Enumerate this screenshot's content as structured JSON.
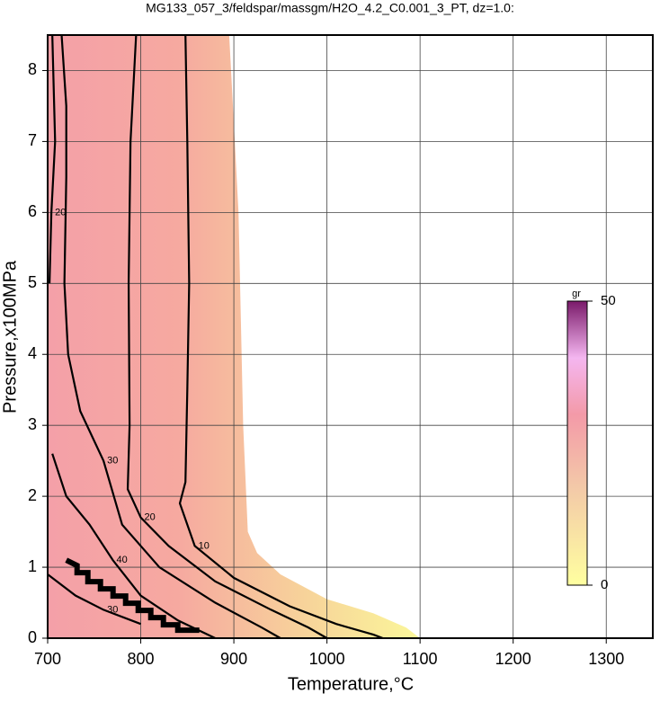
{
  "chart_data": {
    "type": "contour",
    "title": "MG133_057_3/feldspar/massgm/H2O_4.2_C0.001_3_PT, dz=1.0:",
    "x_label": "Temperature,°C",
    "y_label": "Pressure,x100MPa",
    "xlim": [
      700,
      1350
    ],
    "ylim": [
      0,
      8.5
    ],
    "xticks": [
      700,
      800,
      900,
      1000,
      1100,
      1200,
      1300
    ],
    "yticks": [
      0,
      1,
      2,
      3,
      4,
      5,
      6,
      7,
      8
    ],
    "grid": true,
    "field": {
      "x": [
        700,
        895,
        905,
        910,
        915,
        925,
        950,
        1000,
        1050,
        1085,
        1100,
        700
      ],
      "y": [
        8.5,
        8.5,
        6,
        3,
        1.5,
        1.2,
        0.9,
        0.55,
        0.35,
        0.15,
        0,
        0
      ]
    },
    "contours": [
      {
        "level": 10,
        "x": [
          848,
          850,
          852,
          850,
          848,
          842,
          858,
          900,
          960,
          1010,
          1050,
          1060
        ],
        "y": [
          8.5,
          7,
          5,
          3.5,
          2.2,
          1.9,
          1.3,
          0.85,
          0.45,
          0.2,
          0.05,
          0
        ]
      },
      {
        "level": 20,
        "x": [
          795,
          789,
          787,
          788,
          786,
          800,
          830,
          880,
          940,
          980,
          1000
        ],
        "y": [
          8.5,
          7,
          5,
          3,
          2.1,
          1.7,
          1.3,
          0.8,
          0.4,
          0.15,
          0
        ]
      },
      {
        "level": 30,
        "x": [
          715,
          720,
          720,
          718,
          722,
          735,
          760,
          780,
          820,
          880,
          930,
          950
        ],
        "y": [
          8.5,
          7.5,
          6.5,
          5,
          4,
          3.2,
          2.5,
          1.6,
          1.0,
          0.5,
          0.15,
          0
        ]
      },
      {
        "level": 40,
        "x": [
          705,
          720,
          745,
          770,
          800,
          840,
          880
        ],
        "y": [
          2.6,
          2.0,
          1.6,
          1.1,
          0.6,
          0.25,
          0
        ]
      },
      {
        "level": 20,
        "x": [
          705,
          708,
          704,
          702
        ],
        "y": [
          8.5,
          7,
          6,
          5
        ]
      },
      {
        "level": 30,
        "x": [
          700,
          730,
          760,
          800
        ],
        "y": [
          0.9,
          0.6,
          0.4,
          0.2
        ]
      }
    ],
    "colorbar": {
      "label": "gr",
      "clim": [
        0,
        50
      ],
      "ticks": [
        0,
        50
      ]
    }
  }
}
